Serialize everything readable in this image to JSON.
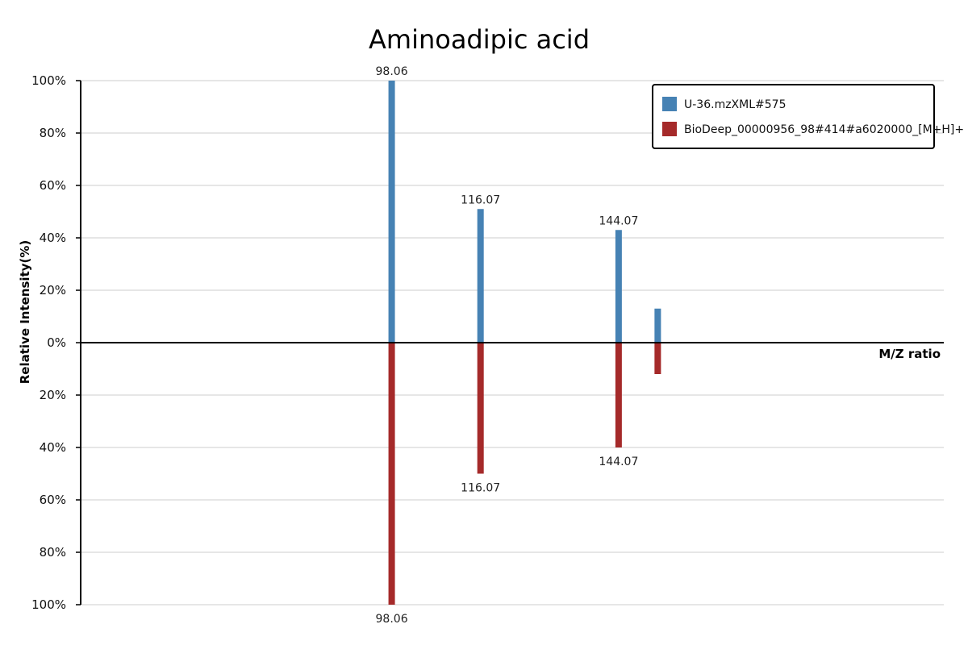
{
  "chart_data": {
    "type": "bar",
    "title": "Aminoadipic acid",
    "xlabel": "M/Z ratio",
    "ylabel": "Relative Intensity(%)",
    "ylim": [
      -100,
      100
    ],
    "yticks": [
      "100%",
      "80%",
      "60%",
      "40%",
      "20%",
      "0%",
      "20%",
      "40%",
      "60%",
      "80%",
      "100%"
    ],
    "grid": true,
    "legend_position": "top-right",
    "mz_range": [
      35,
      210
    ],
    "series": [
      {
        "name": "U-36.mzXML#575",
        "color": "#4682b4",
        "direction": "up",
        "peaks": [
          {
            "mz": 98.06,
            "intensity": 100,
            "label": "98.06"
          },
          {
            "mz": 116.07,
            "intensity": 51,
            "label": "116.07"
          },
          {
            "mz": 144.07,
            "intensity": 43,
            "label": "144.07"
          },
          {
            "mz": 152.0,
            "intensity": 13,
            "label": ""
          }
        ]
      },
      {
        "name": "BioDeep_00000956_98#414#a6020000_[M+H]+",
        "color": "#a52a2a",
        "direction": "down",
        "peaks": [
          {
            "mz": 98.06,
            "intensity": 100,
            "label": "98.06"
          },
          {
            "mz": 116.07,
            "intensity": 50,
            "label": "116.07"
          },
          {
            "mz": 144.07,
            "intensity": 40,
            "label": "144.07"
          },
          {
            "mz": 152.0,
            "intensity": 12,
            "label": ""
          }
        ]
      }
    ]
  }
}
